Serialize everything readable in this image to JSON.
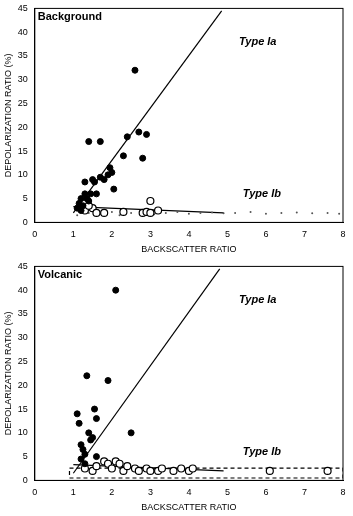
{
  "chart_data": [
    {
      "type": "scatter",
      "title": "Background",
      "x_label": "BACKSCATTER RATIO",
      "y_label": "DEPOLARIZATION RATIO (%)",
      "xlim": [
        0,
        8
      ],
      "ylim": [
        0,
        45
      ],
      "xticks": [
        0,
        1,
        2,
        3,
        4,
        5,
        6,
        7,
        8
      ],
      "yticks": [
        0,
        5,
        10,
        15,
        20,
        25,
        30,
        35,
        40,
        45
      ],
      "grid": false,
      "annotations": [
        {
          "text": "Type Ia",
          "x": 5.3,
          "y": 38
        },
        {
          "text": "Type Ib",
          "x": 5.4,
          "y": 6
        }
      ],
      "series": [
        {
          "type": "scatter",
          "marker": "circle",
          "color": "#000000",
          "x": [
            1.1,
            1.15,
            1.2,
            1.25,
            1.3,
            1.35,
            1.4,
            1.4,
            1.45,
            1.5,
            1.55,
            1.6,
            1.7,
            1.7,
            1.8,
            1.9,
            1.95,
            2.0,
            2.05,
            2.3,
            2.4,
            2.6,
            2.7,
            2.8,
            2.9,
            1.2,
            1.3
          ],
          "values": [
            3,
            4,
            5,
            3.5,
            6,
            5,
            4.5,
            17,
            6,
            9,
            8.5,
            6,
            17,
            9.5,
            9,
            10,
            11.5,
            10.5,
            7,
            14,
            18,
            32,
            19,
            13.5,
            18.5,
            2.5,
            8.5
          ]
        },
        {
          "type": "scatter",
          "marker": "open_circle",
          "color": "#000000",
          "x": [
            1.2,
            1.3,
            1.5,
            1.6,
            1.8,
            2.3,
            2.8,
            2.9,
            3.0,
            3.0,
            3.2,
            1.4
          ],
          "values": [
            3,
            2.5,
            3,
            2,
            2,
            2.2,
            2,
            2.2,
            4.5,
            2,
            2.5,
            3.5
          ]
        },
        {
          "type": "scatter",
          "marker": "dot",
          "color": "#555555",
          "x": [
            1.1,
            1.4,
            1.7,
            2.0,
            2.2,
            2.5,
            2.8,
            3.1,
            3.4,
            3.7,
            4.0,
            4.3,
            4.6,
            4.9,
            5.2,
            5.6,
            6.0,
            6.4,
            6.8,
            7.2,
            7.6,
            7.9
          ],
          "values": [
            1.5,
            2,
            1.8,
            2.2,
            1.5,
            2,
            2.3,
            1.7,
            2,
            2.2,
            1.8,
            2,
            2.1,
            1.9,
            2,
            2.2,
            1.8,
            2,
            2.1,
            1.9,
            2,
            1.8
          ]
        },
        {
          "type": "line",
          "line_style": "solid",
          "color": "#000000",
          "x": [
            1,
            4.85
          ],
          "values": [
            2,
            44.5
          ]
        },
        {
          "type": "line",
          "line_style": "solid",
          "color": "#000000",
          "x": [
            1,
            4.9
          ],
          "values": [
            3.3,
            2
          ]
        }
      ]
    },
    {
      "type": "scatter",
      "title": "Volcanic",
      "x_label": "BACKSCATTER RATIO",
      "y_label": "DEPOLARIZATION RATIO (%)",
      "xlim": [
        0,
        8
      ],
      "ylim": [
        0,
        45
      ],
      "xticks": [
        0,
        1,
        2,
        3,
        4,
        5,
        6,
        7,
        8
      ],
      "yticks": [
        0,
        5,
        10,
        15,
        20,
        25,
        30,
        35,
        40,
        45
      ],
      "grid": false,
      "annotations": [
        {
          "text": "Type Ia",
          "x": 5.3,
          "y": 38
        },
        {
          "text": "Type Ib",
          "x": 5.4,
          "y": 6
        }
      ],
      "series": [
        {
          "type": "scatter",
          "marker": "circle",
          "color": "#000000",
          "x": [
            1.1,
            1.15,
            1.2,
            1.25,
            1.3,
            1.35,
            1.4,
            1.45,
            1.5,
            1.55,
            1.6,
            1.6,
            1.9,
            2.1,
            2.5,
            1.2,
            1.3
          ],
          "values": [
            14,
            12,
            7.5,
            6.5,
            5.5,
            22,
            10,
            8.5,
            9,
            15,
            13,
            5,
            21,
            40,
            10,
            4.5,
            3.5
          ]
        },
        {
          "type": "scatter",
          "marker": "open_circle",
          "color": "#000000",
          "x": [
            1.3,
            1.5,
            1.6,
            1.8,
            1.9,
            2.0,
            2.1,
            2.2,
            2.3,
            2.4,
            2.6,
            2.7,
            2.9,
            3.0,
            3.2,
            3.3,
            3.6,
            3.8,
            4.0,
            4.1,
            6.1,
            7.6
          ],
          "values": [
            2.5,
            2,
            3,
            4,
            3.5,
            2.5,
            4,
            3.5,
            2,
            3,
            2.5,
            2,
            2.5,
            2,
            2,
            2.5,
            2,
            2.5,
            2,
            2.5,
            2,
            2
          ]
        },
        {
          "type": "line",
          "line_style": "dashed",
          "color": "#000000",
          "x": [
            0.9,
            8,
            8,
            0.9,
            0.9
          ],
          "values": [
            0.5,
            0.5,
            2.6,
            2.6,
            0.5
          ]
        },
        {
          "type": "line",
          "line_style": "solid",
          "color": "#000000",
          "x": [
            1,
            4.8
          ],
          "values": [
            1.5,
            44.5
          ]
        },
        {
          "type": "line",
          "line_style": "solid",
          "color": "#000000",
          "x": [
            1,
            4.9
          ],
          "values": [
            3.3,
            2
          ]
        }
      ]
    }
  ]
}
